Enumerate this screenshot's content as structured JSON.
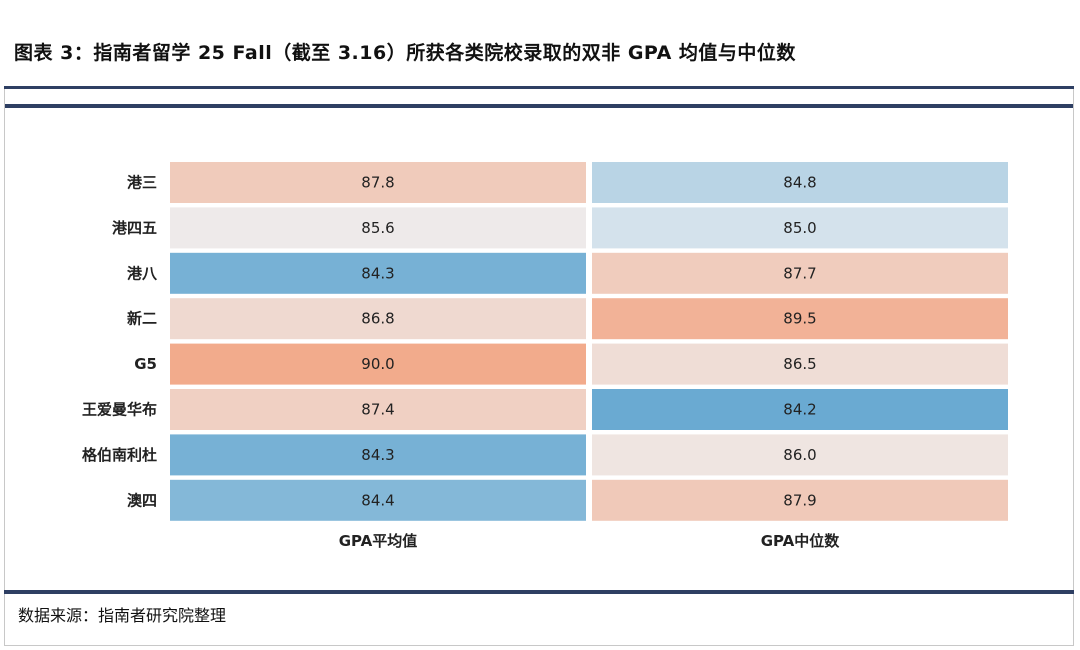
{
  "title": "图表 3：指南者留学 25 Fall（截至 3.16）所获各类院校录取的双非 GPA 均值与中位数",
  "source": "数据来源：指南者研究院整理",
  "chart_data": {
    "type": "heatmap",
    "rows": [
      "港三",
      "港四五",
      "港八",
      "新二",
      "G5",
      "王爱曼华布",
      "格伯南利杜",
      "澳四"
    ],
    "columns": [
      "GPA平均值",
      "GPA中位数"
    ],
    "values": [
      [
        87.8,
        84.8
      ],
      [
        85.6,
        85.0
      ],
      [
        84.3,
        87.7
      ],
      [
        86.8,
        89.5
      ],
      [
        90.0,
        86.5
      ],
      [
        87.4,
        84.2
      ],
      [
        84.3,
        86.0
      ],
      [
        84.4,
        87.9
      ]
    ],
    "value_labels": [
      [
        "87.8",
        "84.8"
      ],
      [
        "85.6",
        "85.0"
      ],
      [
        "84.3",
        "87.7"
      ],
      [
        "86.8",
        "89.5"
      ],
      [
        "90.0",
        "86.5"
      ],
      [
        "87.4",
        "84.2"
      ],
      [
        "84.3",
        "86.0"
      ],
      [
        "84.4",
        "87.9"
      ]
    ],
    "colormap": {
      "low": "#6aaad2",
      "mid": "#eef0f2",
      "high": "#f2ab8c"
    }
  }
}
